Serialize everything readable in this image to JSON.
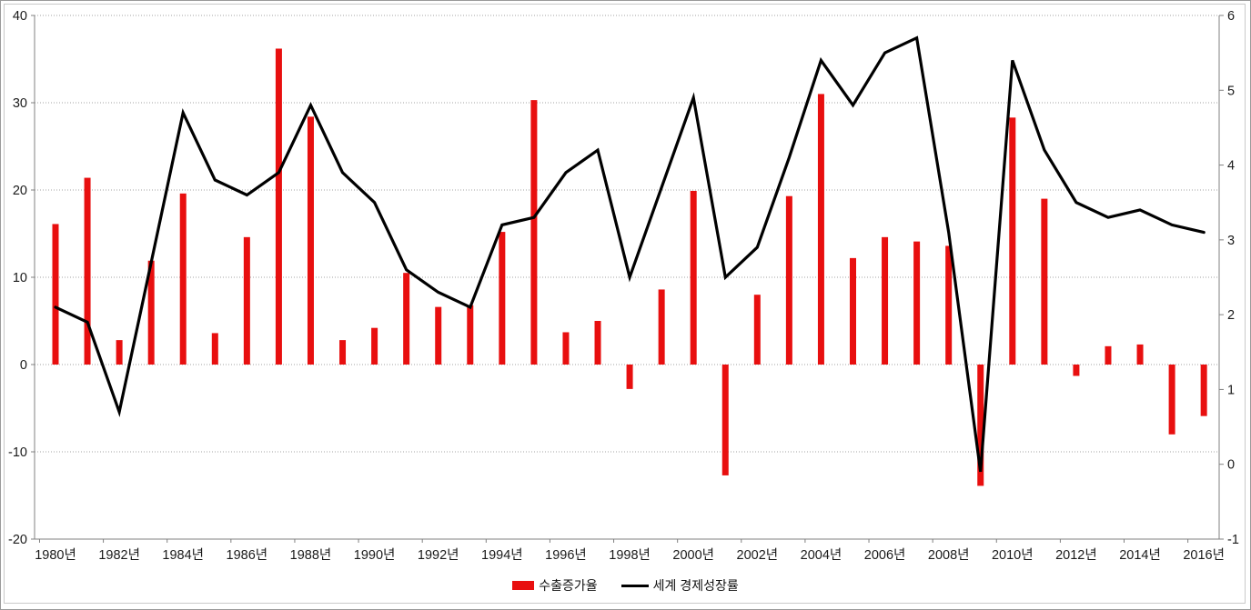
{
  "chart_data": {
    "type": "bar+line combo",
    "title": "",
    "years": [
      1980,
      1981,
      1982,
      1983,
      1984,
      1985,
      1986,
      1987,
      1988,
      1989,
      1990,
      1991,
      1992,
      1993,
      1994,
      1995,
      1996,
      1997,
      1998,
      1999,
      2000,
      2001,
      2002,
      2003,
      2004,
      2005,
      2006,
      2007,
      2008,
      2009,
      2010,
      2011,
      2012,
      2013,
      2014,
      2015,
      2016
    ],
    "x_tick_labels": [
      "1980년",
      "1982년",
      "1984년",
      "1986년",
      "1988년",
      "1990년",
      "1992년",
      "1994년",
      "1996년",
      "1998년",
      "2000년",
      "2002년",
      "2004년",
      "2006년",
      "2008년",
      "2010년",
      "2012년",
      "2014년",
      "2016년"
    ],
    "series": [
      {
        "name": "수출증가율",
        "type": "bar",
        "axis": "left",
        "color": "#e80f0f",
        "values": [
          16.1,
          21.4,
          2.8,
          11.9,
          19.6,
          3.6,
          14.6,
          36.2,
          28.4,
          2.8,
          4.2,
          10.5,
          6.6,
          6.8,
          15.2,
          30.3,
          3.7,
          5.0,
          -2.8,
          8.6,
          19.9,
          -12.7,
          8.0,
          19.3,
          31.0,
          12.2,
          14.6,
          14.1,
          13.6,
          -13.9,
          28.3,
          19.0,
          -1.3,
          2.1,
          2.3,
          -8.0,
          -5.9
        ]
      },
      {
        "name": "세계 경제성장률",
        "type": "line",
        "axis": "right",
        "color": "#000000",
        "values": [
          2.1,
          1.9,
          0.7,
          2.7,
          4.7,
          3.8,
          3.6,
          3.9,
          4.8,
          3.9,
          3.5,
          2.6,
          2.3,
          2.1,
          3.2,
          3.3,
          3.9,
          4.2,
          2.5,
          3.7,
          4.9,
          2.5,
          2.9,
          4.1,
          5.4,
          4.8,
          5.5,
          5.7,
          3.1,
          -0.1,
          5.4,
          4.2,
          3.5,
          3.3,
          3.4,
          3.2,
          3.1
        ]
      }
    ],
    "left_axis": {
      "min": -20,
      "max": 40,
      "ticks": [
        40,
        30,
        20,
        10,
        0,
        -10,
        -20
      ],
      "tick_labels": [
        "40",
        "30",
        "20",
        "10",
        "0",
        "-10",
        "-20"
      ]
    },
    "right_axis": {
      "min": -1,
      "max": 6,
      "ticks": [
        6,
        5,
        4,
        3,
        2,
        1,
        0,
        -1
      ],
      "tick_labels": [
        "6",
        "5",
        "4",
        "3",
        "2",
        "1",
        "0",
        "-1"
      ]
    },
    "grid": "horizontal dotted",
    "legend_position": "bottom-center",
    "colors": {
      "gridline": "#a3a3a3",
      "axis": "#808080",
      "text": "#1a1a1a"
    }
  }
}
